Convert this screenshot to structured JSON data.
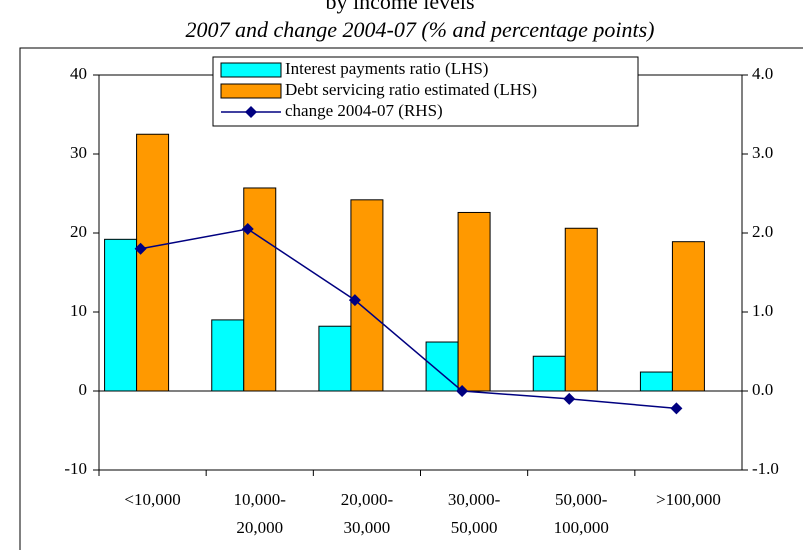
{
  "chart_data": {
    "type": "bar",
    "title": "by income levels",
    "subtitle": "2007 and change 2004-07 (% and percentage points)",
    "categories": [
      "<10,000",
      "10,000-\n20,000",
      "20,000-\n30,000",
      "30,000-\n50,000",
      "50,000-\n100,000",
      ">100,000"
    ],
    "series": [
      {
        "name": "Interest payments ratio (LHS)",
        "type": "bar",
        "color": "#00ffff",
        "values": [
          19.2,
          9.0,
          8.2,
          6.2,
          4.4,
          2.4
        ]
      },
      {
        "name": "Debt servicing ratio estimated (LHS)",
        "type": "bar",
        "color": "#ff9900",
        "values": [
          32.5,
          25.7,
          24.2,
          22.6,
          20.6,
          18.9
        ]
      },
      {
        "name": "change 2004-07 (RHS)",
        "type": "line",
        "axis": "y2",
        "color": "#000080",
        "values": [
          1.8,
          2.05,
          1.15,
          0.0,
          -0.1,
          -0.22
        ]
      }
    ],
    "ylim": [
      -10,
      40
    ],
    "yticks": [
      -10,
      0,
      10,
      20,
      30,
      40
    ],
    "y2lim": [
      -1,
      4
    ],
    "y2ticks": [
      {
        "value": -1,
        "label": "-1.0"
      },
      {
        "value": 0,
        "label": "0.0"
      },
      {
        "value": 1,
        "label": "1.0"
      },
      {
        "value": 2,
        "label": "2.0"
      },
      {
        "value": 3,
        "label": "3.0"
      },
      {
        "value": 4,
        "label": "4.0"
      }
    ]
  }
}
